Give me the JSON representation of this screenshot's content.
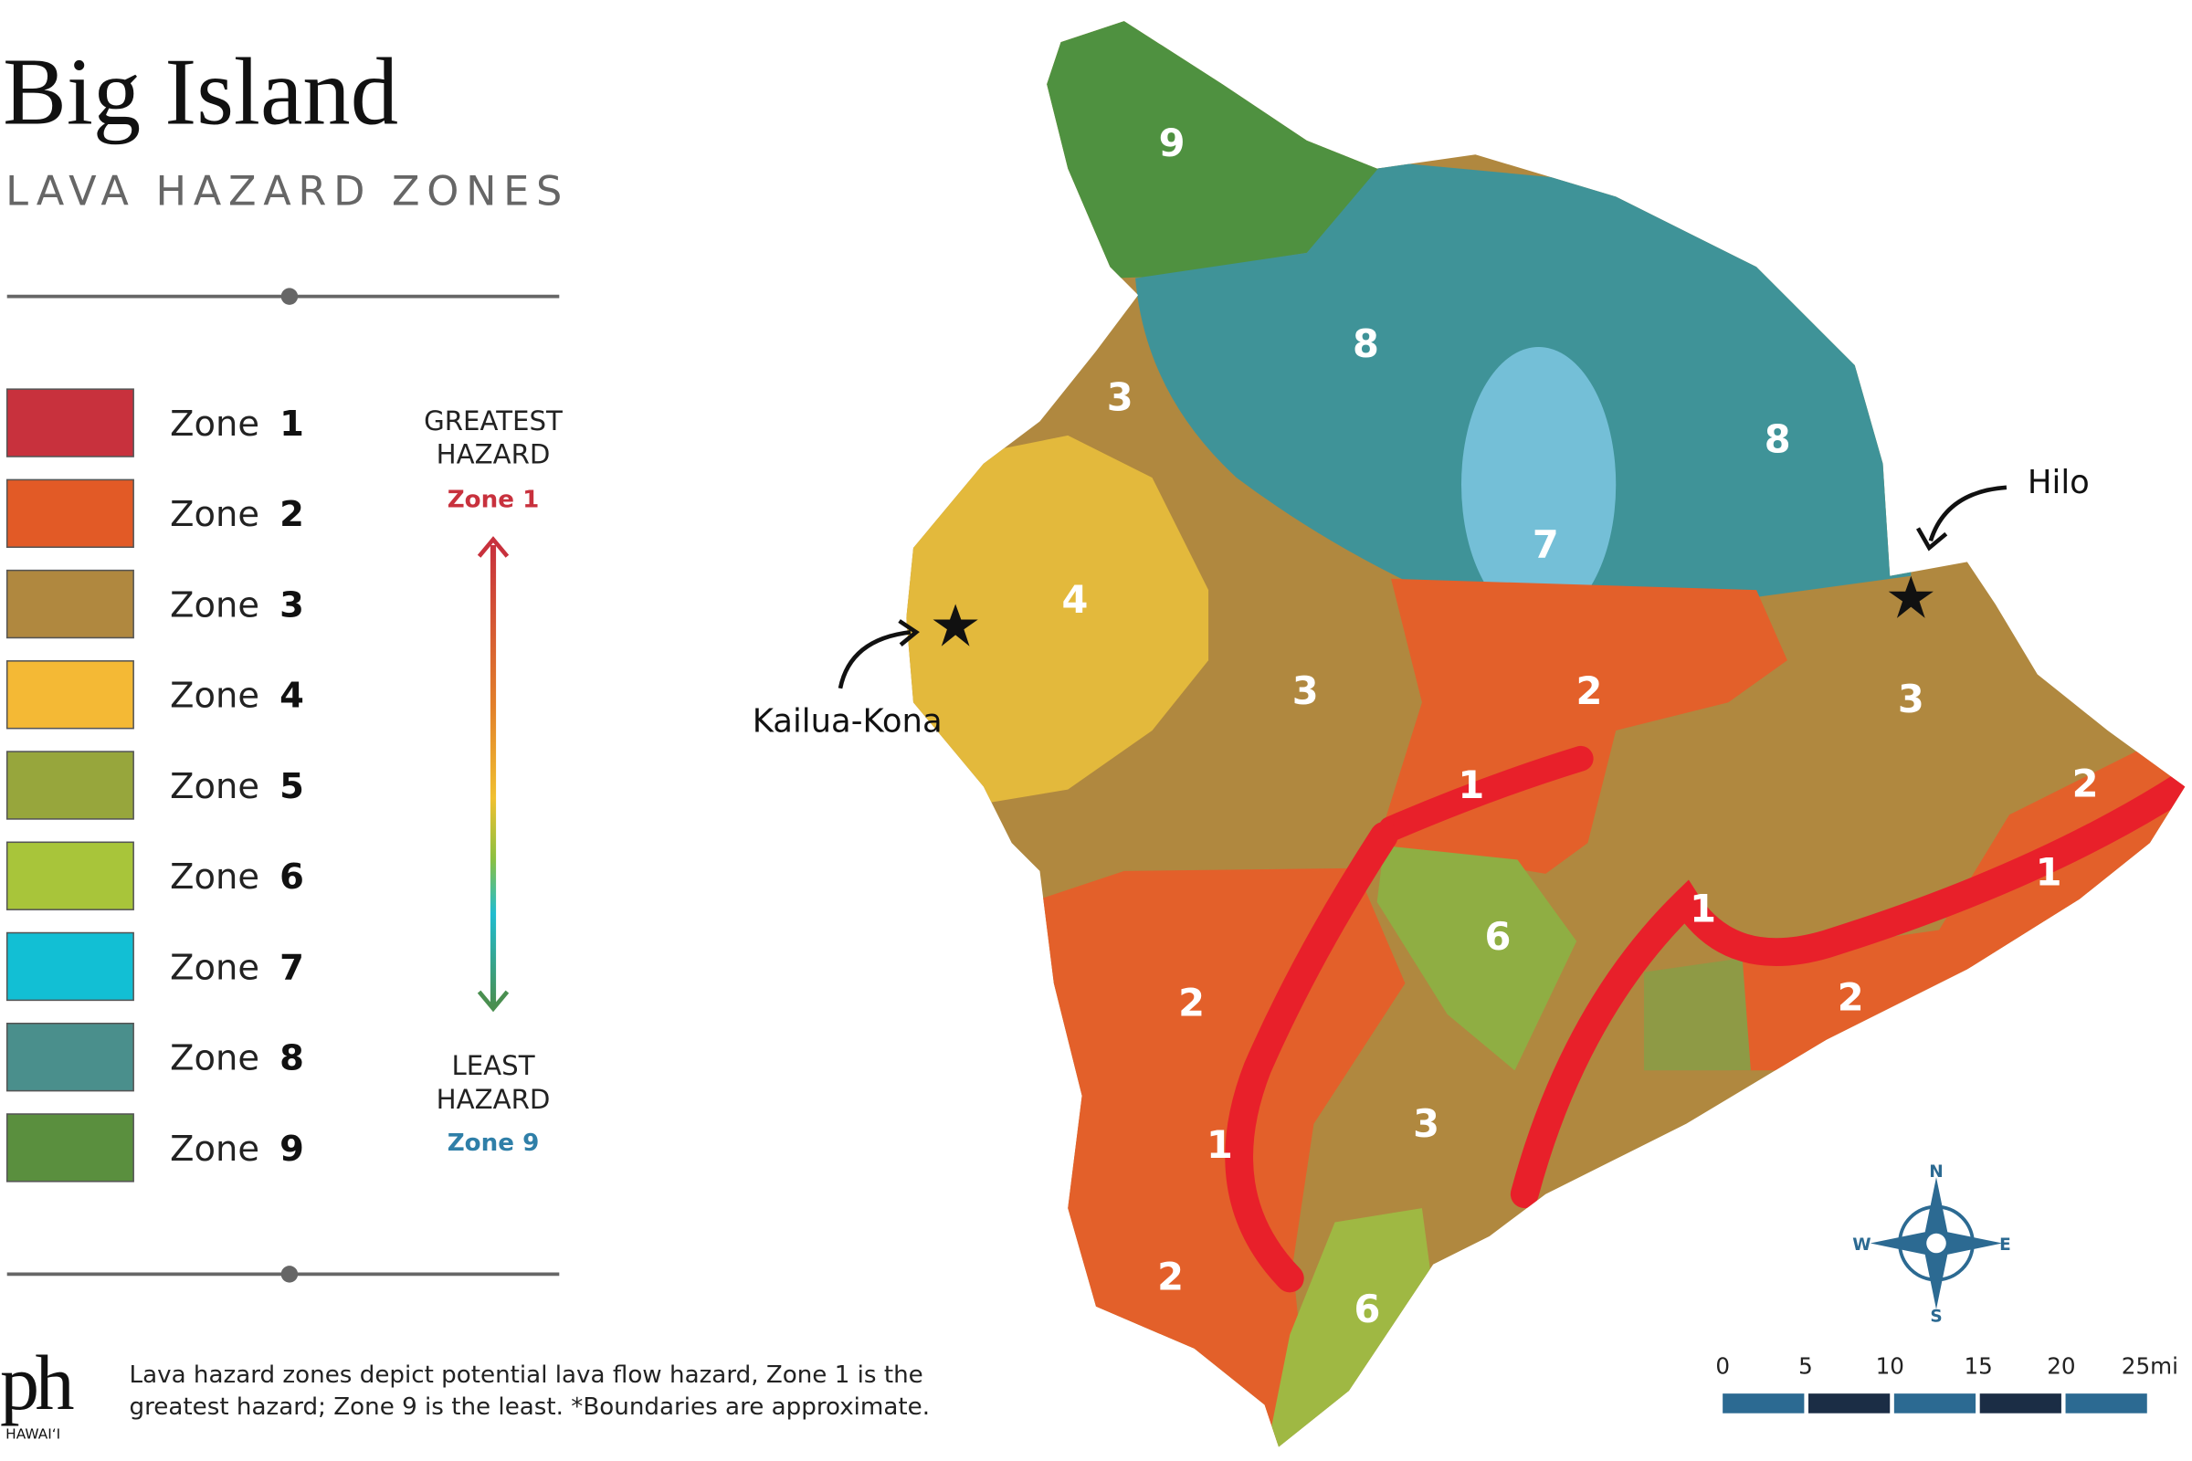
{
  "header": {
    "title": "Big Island",
    "subtitle": "LAVA HAZARD ZONES"
  },
  "legend": {
    "items": [
      {
        "label": "Zone",
        "number": "1",
        "color": "#c8313d"
      },
      {
        "label": "Zone",
        "number": "2",
        "color": "#e25a26"
      },
      {
        "label": "Zone",
        "number": "3",
        "color": "#b0883f"
      },
      {
        "label": "Zone",
        "number": "4",
        "color": "#f4b935"
      },
      {
        "label": "Zone",
        "number": "5",
        "color": "#97a63c"
      },
      {
        "label": "Zone",
        "number": "6",
        "color": "#a8c53a"
      },
      {
        "label": "Zone",
        "number": "7",
        "color": "#12bfd4"
      },
      {
        "label": "Zone",
        "number": "8",
        "color": "#4a8f8c"
      },
      {
        "label": "Zone",
        "number": "9",
        "color": "#5a8f3e"
      }
    ]
  },
  "hazard_scale": {
    "top_label": [
      "GREATEST",
      "HAZARD"
    ],
    "top_zone": "Zone 1",
    "bottom_label": [
      "LEAST",
      "HAZARD"
    ],
    "bottom_zone": "Zone 9"
  },
  "map": {
    "zone_labels": [
      "9",
      "8",
      "3",
      "8",
      "7",
      "4",
      "3",
      "2",
      "3",
      "2",
      "1",
      "1",
      "1",
      "6",
      "2",
      "2",
      "3",
      "1",
      "2",
      "6"
    ],
    "places": [
      "Kailua-Kona",
      "Hilo"
    ]
  },
  "compass": {
    "n": "N",
    "e": "E",
    "s": "S",
    "w": "W"
  },
  "scale_bar": {
    "ticks": [
      "0",
      "5",
      "10",
      "15",
      "20",
      "25mi"
    ]
  },
  "footer": {
    "logo": "ph",
    "logo_sub": "HAWAI‘I",
    "note": [
      "Lava hazard zones depict potential lava flow hazard, Zone 1 is the",
      "greatest hazard; Zone 9 is the least. *Boundaries are approximate."
    ]
  }
}
